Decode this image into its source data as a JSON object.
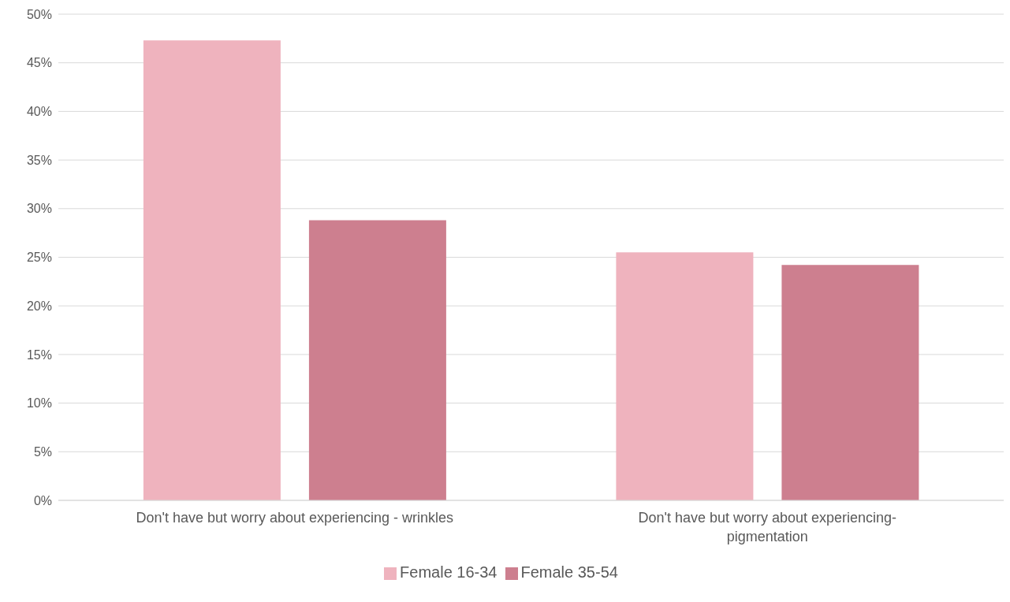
{
  "chart_data": {
    "type": "bar",
    "categories": [
      "Don't have but worry about experiencing - wrinkles",
      "Don't have but worry about experiencing-pigmentation"
    ],
    "series": [
      {
        "name": "Female 16-34",
        "color": "#efb3be",
        "values": [
          47.3,
          25.5
        ]
      },
      {
        "name": "Female 35-54",
        "color": "#cd7f8f",
        "values": [
          28.8,
          24.2
        ]
      }
    ],
    "ylim": [
      0,
      50
    ],
    "yticks": [
      {
        "value": 0,
        "label": "0%"
      },
      {
        "value": 5,
        "label": "5%"
      },
      {
        "value": 10,
        "label": "10%"
      },
      {
        "value": 15,
        "label": "15%"
      },
      {
        "value": 20,
        "label": "20%"
      },
      {
        "value": 25,
        "label": "25%"
      },
      {
        "value": 30,
        "label": "30%"
      },
      {
        "value": 35,
        "label": "35%"
      },
      {
        "value": 40,
        "label": "40%"
      },
      {
        "value": 45,
        "label": "45%"
      },
      {
        "value": 50,
        "label": "50%"
      }
    ],
    "grid": "y",
    "legend": "bottom"
  }
}
